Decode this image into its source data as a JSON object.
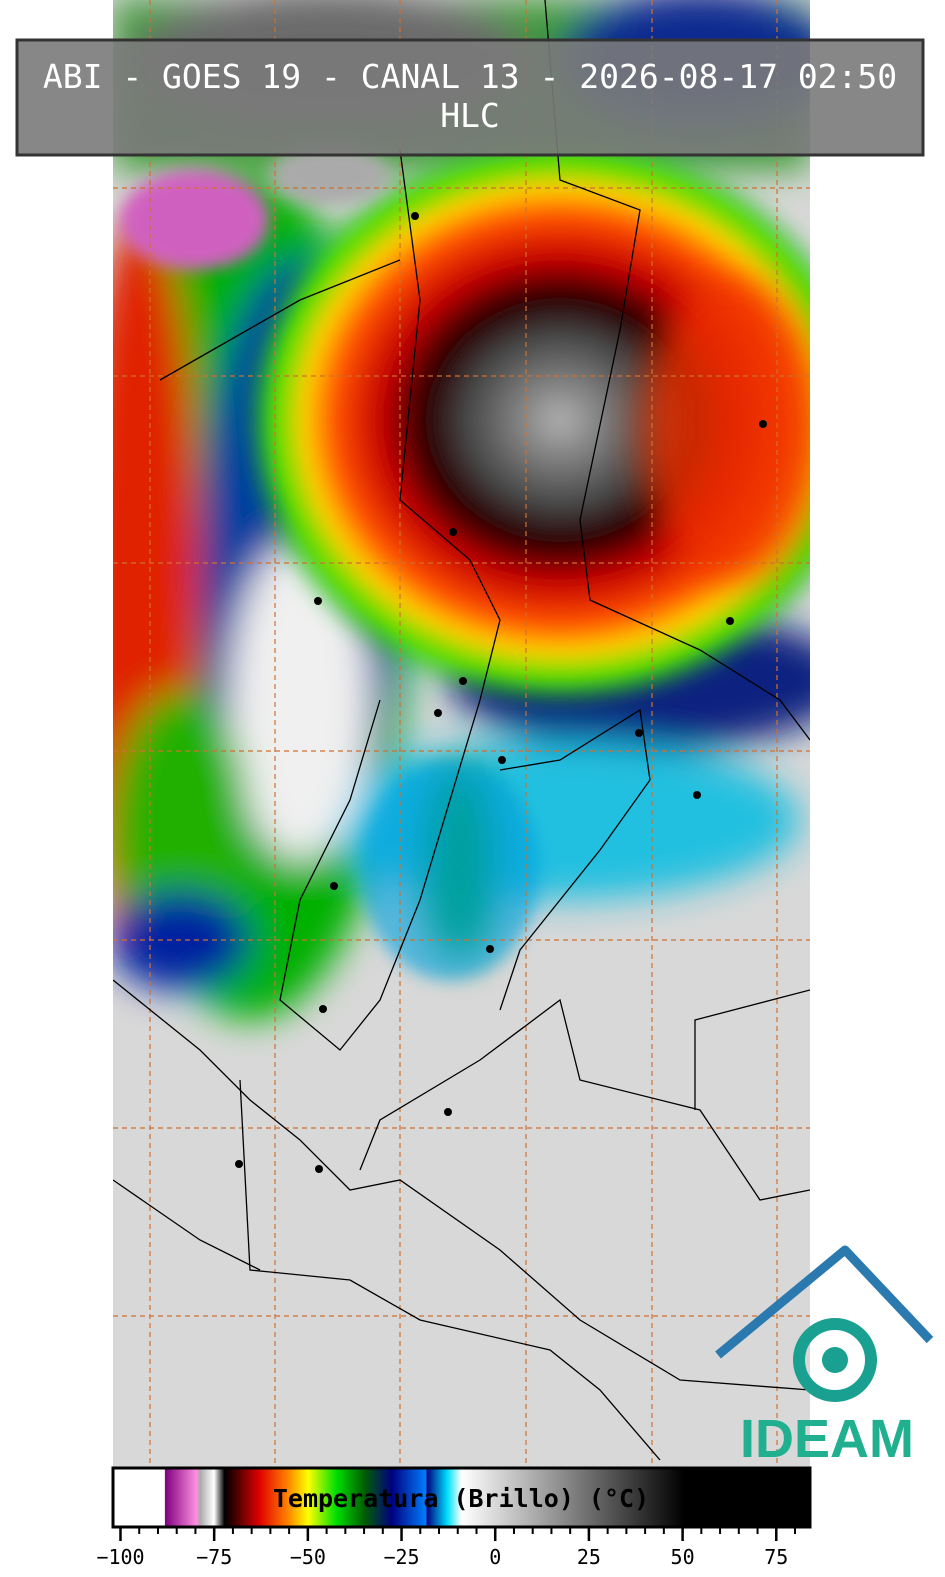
{
  "header": {
    "title": "ABI - GOES 19 - CANAL 13 - 2026-08-17 02:50",
    "subtitle": "HLC"
  },
  "logo": {
    "text": "IDEAM"
  },
  "chart_data": {
    "type": "colorbar",
    "label": "Temperatura (Brillo) (°C)",
    "xlim": [
      -102,
      84
    ],
    "xticks": [
      {
        "value": -100,
        "label": "−100"
      },
      {
        "value": -75,
        "label": "−75"
      },
      {
        "value": -50,
        "label": "−50"
      },
      {
        "value": -25,
        "label": "−25"
      },
      0,
      25,
      50,
      75
    ],
    "xticks_minor": [
      -100,
      -95,
      -90,
      -85,
      -80,
      -75,
      -70,
      -65,
      -60,
      -55,
      -50,
      -45,
      -40,
      -35,
      -30,
      -25,
      -20,
      -15,
      -10,
      -5,
      0,
      5,
      10,
      15,
      20,
      25,
      30,
      35,
      40,
      45,
      50,
      55,
      60,
      65,
      70,
      75,
      80
    ]
  }
}
